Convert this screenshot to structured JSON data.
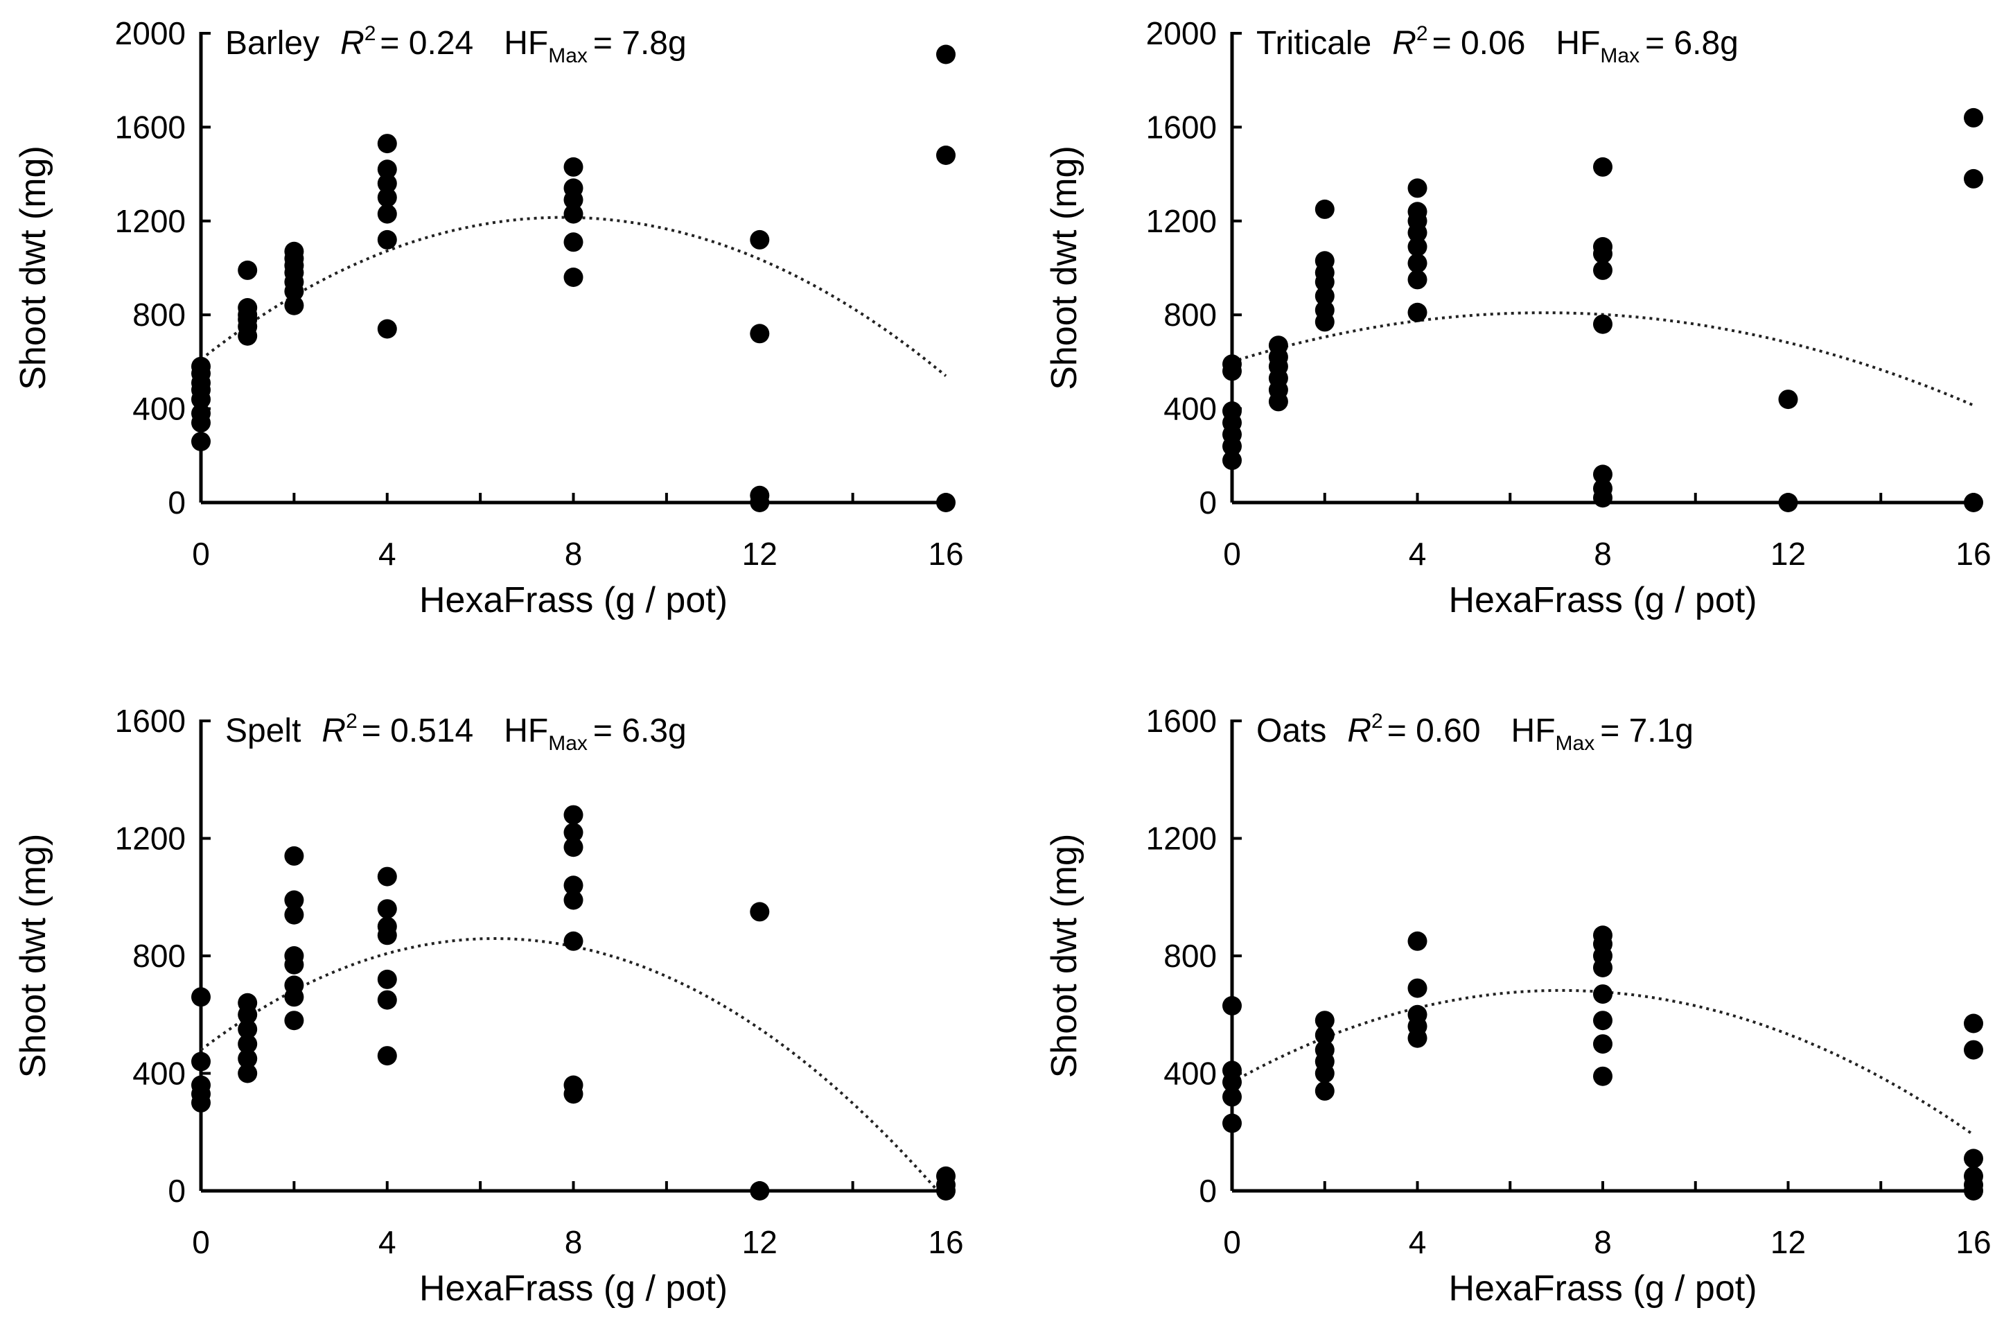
{
  "chart_data": [
    {
      "type": "scatter",
      "panel": "barley",
      "crop": "Barley",
      "r2_value": "= 0.24",
      "hfmax_value": "= 7.8g",
      "xlabel": "HexaFrass (g / pot)",
      "ylabel": "Shoot dwt (mg)",
      "xlim": [
        0,
        16
      ],
      "ylim": [
        0,
        2000
      ],
      "xticks": [
        "0",
        "4",
        "8",
        "12",
        "16"
      ],
      "yticks": [
        "0",
        "400",
        "800",
        "1200",
        "1600",
        "2000"
      ],
      "points": [
        [
          0,
          260
        ],
        [
          0,
          340
        ],
        [
          0,
          380
        ],
        [
          0,
          440
        ],
        [
          0,
          480
        ],
        [
          0,
          510
        ],
        [
          0,
          550
        ],
        [
          0,
          580
        ],
        [
          1,
          710
        ],
        [
          1,
          750
        ],
        [
          1,
          780
        ],
        [
          1,
          800
        ],
        [
          1,
          830
        ],
        [
          1,
          990
        ],
        [
          2,
          840
        ],
        [
          2,
          900
        ],
        [
          2,
          940
        ],
        [
          2,
          980
        ],
        [
          2,
          1010
        ],
        [
          2,
          1040
        ],
        [
          2,
          1070
        ],
        [
          4,
          740
        ],
        [
          4,
          1120
        ],
        [
          4,
          1230
        ],
        [
          4,
          1300
        ],
        [
          4,
          1360
        ],
        [
          4,
          1420
        ],
        [
          4,
          1530
        ],
        [
          8,
          960
        ],
        [
          8,
          1110
        ],
        [
          8,
          1230
        ],
        [
          8,
          1290
        ],
        [
          8,
          1340
        ],
        [
          8,
          1430
        ],
        [
          12,
          0
        ],
        [
          12,
          30
        ],
        [
          12,
          720
        ],
        [
          12,
          1120
        ],
        [
          16,
          0
        ],
        [
          16,
          1480
        ],
        [
          16,
          1910
        ]
      ],
      "trend": {
        "a": 610,
        "b": 155.6,
        "c": -10
      }
    },
    {
      "type": "scatter",
      "panel": "triticale",
      "crop": "Triticale",
      "r2_value": "= 0.06",
      "hfmax_value": "= 6.8g",
      "xlabel": "HexaFrass (g / pot)",
      "ylabel": "Shoot dwt (mg)",
      "xlim": [
        0,
        16
      ],
      "ylim": [
        0,
        2000
      ],
      "xticks": [
        "0",
        "4",
        "8",
        "12",
        "16"
      ],
      "yticks": [
        "0",
        "400",
        "800",
        "1200",
        "1600",
        "2000"
      ],
      "points": [
        [
          0,
          180
        ],
        [
          0,
          240
        ],
        [
          0,
          290
        ],
        [
          0,
          340
        ],
        [
          0,
          390
        ],
        [
          0,
          560
        ],
        [
          0,
          590
        ],
        [
          1,
          430
        ],
        [
          1,
          480
        ],
        [
          1,
          530
        ],
        [
          1,
          580
        ],
        [
          1,
          620
        ],
        [
          1,
          670
        ],
        [
          2,
          770
        ],
        [
          2,
          820
        ],
        [
          2,
          880
        ],
        [
          2,
          940
        ],
        [
          2,
          980
        ],
        [
          2,
          1030
        ],
        [
          2,
          1250
        ],
        [
          4,
          810
        ],
        [
          4,
          950
        ],
        [
          4,
          1020
        ],
        [
          4,
          1090
        ],
        [
          4,
          1150
        ],
        [
          4,
          1200
        ],
        [
          4,
          1240
        ],
        [
          4,
          1340
        ],
        [
          8,
          20
        ],
        [
          8,
          60
        ],
        [
          8,
          120
        ],
        [
          8,
          760
        ],
        [
          8,
          990
        ],
        [
          8,
          1060
        ],
        [
          8,
          1090
        ],
        [
          8,
          1430
        ],
        [
          12,
          0
        ],
        [
          12,
          440
        ],
        [
          16,
          0
        ],
        [
          16,
          1380
        ],
        [
          16,
          1640
        ]
      ],
      "trend": {
        "a": 600,
        "b": 62,
        "c": -4.6
      }
    },
    {
      "type": "scatter",
      "panel": "spelt",
      "crop": "Spelt",
      "r2_value": "= 0.514",
      "hfmax_value": "= 6.3g",
      "xlabel": "HexaFrass (g / pot)",
      "ylabel": "Shoot dwt (mg)",
      "xlim": [
        0,
        16
      ],
      "ylim": [
        0,
        1600
      ],
      "xticks": [
        "0",
        "4",
        "8",
        "12",
        "16"
      ],
      "yticks": [
        "0",
        "400",
        "800",
        "1200",
        "1600"
      ],
      "points": [
        [
          0,
          300
        ],
        [
          0,
          330
        ],
        [
          0,
          360
        ],
        [
          0,
          440
        ],
        [
          0,
          660
        ],
        [
          1,
          400
        ],
        [
          1,
          450
        ],
        [
          1,
          500
        ],
        [
          1,
          550
        ],
        [
          1,
          600
        ],
        [
          1,
          640
        ],
        [
          2,
          580
        ],
        [
          2,
          660
        ],
        [
          2,
          700
        ],
        [
          2,
          770
        ],
        [
          2,
          800
        ],
        [
          2,
          940
        ],
        [
          2,
          990
        ],
        [
          2,
          1140
        ],
        [
          4,
          460
        ],
        [
          4,
          650
        ],
        [
          4,
          720
        ],
        [
          4,
          870
        ],
        [
          4,
          900
        ],
        [
          4,
          960
        ],
        [
          4,
          1070
        ],
        [
          8,
          330
        ],
        [
          8,
          360
        ],
        [
          8,
          850
        ],
        [
          8,
          990
        ],
        [
          8,
          1040
        ],
        [
          8,
          1170
        ],
        [
          8,
          1220
        ],
        [
          8,
          1280
        ],
        [
          12,
          0
        ],
        [
          12,
          950
        ],
        [
          16,
          0
        ],
        [
          16,
          20
        ],
        [
          16,
          50
        ]
      ],
      "trend": {
        "a": 480,
        "b": 120,
        "c": -9.5
      }
    },
    {
      "type": "scatter",
      "panel": "oats",
      "crop": "Oats",
      "r2_value": "= 0.60",
      "hfmax_value": "= 7.1g",
      "xlabel": "HexaFrass (g / pot)",
      "ylabel": "Shoot dwt (mg)",
      "xlim": [
        0,
        16
      ],
      "ylim": [
        0,
        1600
      ],
      "xticks": [
        "0",
        "4",
        "8",
        "12",
        "16"
      ],
      "yticks": [
        "0",
        "400",
        "800",
        "1200",
        "1600"
      ],
      "points": [
        [
          0,
          230
        ],
        [
          0,
          320
        ],
        [
          0,
          370
        ],
        [
          0,
          410
        ],
        [
          0,
          630
        ],
        [
          2,
          340
        ],
        [
          2,
          400
        ],
        [
          2,
          440
        ],
        [
          2,
          480
        ],
        [
          2,
          530
        ],
        [
          2,
          580
        ],
        [
          4,
          520
        ],
        [
          4,
          560
        ],
        [
          4,
          600
        ],
        [
          4,
          690
        ],
        [
          4,
          850
        ],
        [
          8,
          390
        ],
        [
          8,
          500
        ],
        [
          8,
          580
        ],
        [
          8,
          670
        ],
        [
          8,
          760
        ],
        [
          8,
          800
        ],
        [
          8,
          840
        ],
        [
          8,
          870
        ],
        [
          16,
          0
        ],
        [
          16,
          20
        ],
        [
          16,
          50
        ],
        [
          16,
          110
        ],
        [
          16,
          480
        ],
        [
          16,
          570
        ]
      ],
      "trend": {
        "a": 370,
        "b": 88,
        "c": -6.2
      }
    }
  ]
}
